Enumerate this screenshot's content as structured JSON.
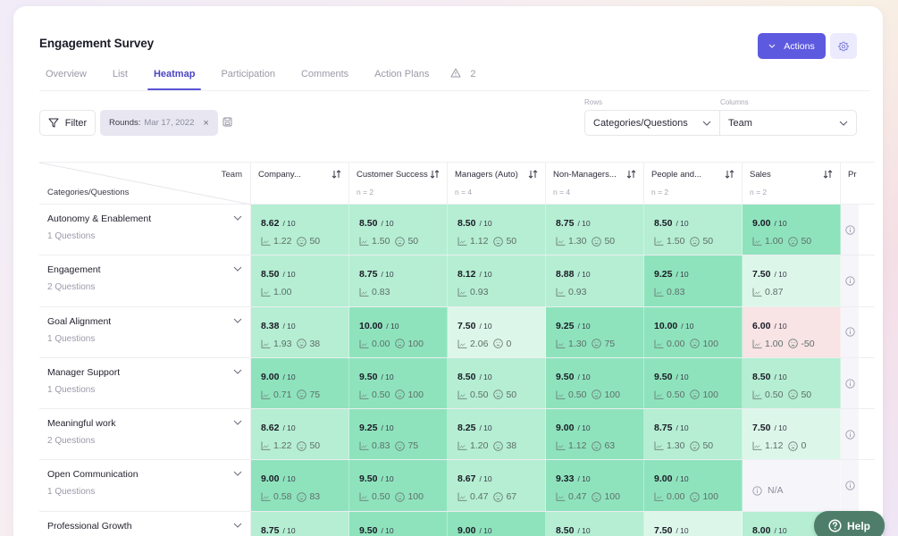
{
  "header": {
    "title": "Engagement Survey",
    "actions_label": "Actions",
    "settings_icon": "gear-icon"
  },
  "tabs": [
    {
      "label": "Overview",
      "active": false
    },
    {
      "label": "List",
      "active": false
    },
    {
      "label": "Heatmap",
      "active": true
    },
    {
      "label": "Participation",
      "active": false
    },
    {
      "label": "Comments",
      "active": false
    },
    {
      "label": "Action Plans",
      "active": false
    }
  ],
  "alerts": {
    "icon": "warning-icon",
    "count": "2"
  },
  "filter": {
    "button_label": "Filter",
    "chip_label": "Rounds:",
    "chip_value": "Mar 17, 2022",
    "chip_close": "×"
  },
  "selectors": {
    "rows_label": "Rows",
    "rows_value": "Categories/Questions",
    "columns_label": "Columns",
    "columns_value": "Team"
  },
  "table": {
    "corner_top": "Team",
    "corner_bottom": "Categories/Questions",
    "columns": [
      {
        "name": "Company...",
        "n": ""
      },
      {
        "name": "Customer Success",
        "n": "n = 2"
      },
      {
        "name": "Managers (Auto)",
        "n": "n = 4"
      },
      {
        "name": "Non-Managers...",
        "n": "n = 4"
      },
      {
        "name": "People and...",
        "n": "n = 2"
      },
      {
        "name": "Sales",
        "n": "n = 2"
      },
      {
        "name": "Pr",
        "n": ""
      }
    ],
    "score_max": "/ 10",
    "rows": [
      {
        "title": "Autonomy & Enablement",
        "sub": "1 Questions",
        "cells": [
          {
            "score": "8.62",
            "sd": "1.22",
            "enps": "50",
            "tone": "mid",
            "face": "happy"
          },
          {
            "score": "8.50",
            "sd": "1.50",
            "enps": "50",
            "tone": "mid",
            "face": "happy"
          },
          {
            "score": "8.50",
            "sd": "1.12",
            "enps": "50",
            "tone": "mid",
            "face": "happy"
          },
          {
            "score": "8.75",
            "sd": "1.30",
            "enps": "50",
            "tone": "mid",
            "face": "happy"
          },
          {
            "score": "8.50",
            "sd": "1.50",
            "enps": "50",
            "tone": "mid",
            "face": "happy"
          },
          {
            "score": "9.00",
            "sd": "1.00",
            "enps": "50",
            "tone": "dark",
            "face": "happy"
          }
        ]
      },
      {
        "title": "Engagement",
        "sub": "2 Questions",
        "cells": [
          {
            "score": "8.50",
            "sd": "1.00",
            "enps": null,
            "tone": "mid"
          },
          {
            "score": "8.75",
            "sd": "0.83",
            "enps": null,
            "tone": "mid"
          },
          {
            "score": "8.12",
            "sd": "0.93",
            "enps": null,
            "tone": "mid"
          },
          {
            "score": "8.88",
            "sd": "0.93",
            "enps": null,
            "tone": "mid"
          },
          {
            "score": "9.25",
            "sd": "0.83",
            "enps": null,
            "tone": "dark"
          },
          {
            "score": "7.50",
            "sd": "0.87",
            "enps": null,
            "tone": "light"
          }
        ]
      },
      {
        "title": "Goal Alignment",
        "sub": "1 Questions",
        "cells": [
          {
            "score": "8.38",
            "sd": "1.93",
            "enps": "38",
            "tone": "mid",
            "face": "happy"
          },
          {
            "score": "10.00",
            "sd": "0.00",
            "enps": "100",
            "tone": "dark",
            "face": "happy"
          },
          {
            "score": "7.50",
            "sd": "2.06",
            "enps": "0",
            "tone": "light",
            "face": "neutral"
          },
          {
            "score": "9.25",
            "sd": "1.30",
            "enps": "75",
            "tone": "dark",
            "face": "happy"
          },
          {
            "score": "10.00",
            "sd": "0.00",
            "enps": "100",
            "tone": "dark",
            "face": "happy"
          },
          {
            "score": "6.00",
            "sd": "1.00",
            "enps": "-50",
            "tone": "neg",
            "face": "sad"
          }
        ]
      },
      {
        "title": "Manager Support",
        "sub": "1 Questions",
        "cells": [
          {
            "score": "9.00",
            "sd": "0.71",
            "enps": "75",
            "tone": "dark",
            "face": "happy"
          },
          {
            "score": "9.50",
            "sd": "0.50",
            "enps": "100",
            "tone": "dark",
            "face": "happy"
          },
          {
            "score": "8.50",
            "sd": "0.50",
            "enps": "50",
            "tone": "mid",
            "face": "happy"
          },
          {
            "score": "9.50",
            "sd": "0.50",
            "enps": "100",
            "tone": "dark",
            "face": "happy"
          },
          {
            "score": "9.50",
            "sd": "0.50",
            "enps": "100",
            "tone": "dark",
            "face": "happy"
          },
          {
            "score": "8.50",
            "sd": "0.50",
            "enps": "50",
            "tone": "mid",
            "face": "happy"
          }
        ]
      },
      {
        "title": "Meaningful work",
        "sub": "2 Questions",
        "cells": [
          {
            "score": "8.62",
            "sd": "1.22",
            "enps": "50",
            "tone": "mid",
            "face": "happy"
          },
          {
            "score": "9.25",
            "sd": "0.83",
            "enps": "75",
            "tone": "dark",
            "face": "happy"
          },
          {
            "score": "8.25",
            "sd": "1.20",
            "enps": "38",
            "tone": "mid",
            "face": "happy"
          },
          {
            "score": "9.00",
            "sd": "1.12",
            "enps": "63",
            "tone": "dark",
            "face": "happy"
          },
          {
            "score": "8.75",
            "sd": "1.30",
            "enps": "50",
            "tone": "mid",
            "face": "happy"
          },
          {
            "score": "7.50",
            "sd": "1.12",
            "enps": "0",
            "tone": "light",
            "face": "neutral"
          }
        ]
      },
      {
        "title": "Open Communication",
        "sub": "1 Questions",
        "cells": [
          {
            "score": "9.00",
            "sd": "0.58",
            "enps": "83",
            "tone": "dark",
            "face": "happy"
          },
          {
            "score": "9.50",
            "sd": "0.50",
            "enps": "100",
            "tone": "dark",
            "face": "happy"
          },
          {
            "score": "8.67",
            "sd": "0.47",
            "enps": "67",
            "tone": "mid",
            "face": "happy"
          },
          {
            "score": "9.33",
            "sd": "0.47",
            "enps": "100",
            "tone": "dark",
            "face": "happy"
          },
          {
            "score": "9.00",
            "sd": "0.00",
            "enps": "100",
            "tone": "dark",
            "face": "happy"
          },
          {
            "na": "N/A",
            "tone": "na"
          }
        ]
      },
      {
        "title": "Professional Growth",
        "sub": "",
        "cells": [
          {
            "score": "8.75",
            "sd": "",
            "enps": null,
            "tone": "mid"
          },
          {
            "score": "9.50",
            "sd": "",
            "enps": null,
            "tone": "dark"
          },
          {
            "score": "9.00",
            "sd": "",
            "enps": null,
            "tone": "dark"
          },
          {
            "score": "8.50",
            "sd": "",
            "enps": null,
            "tone": "mid"
          },
          {
            "score": "7.50",
            "sd": "",
            "enps": null,
            "tone": "light"
          },
          {
            "score": "8.00",
            "sd": "",
            "enps": null,
            "tone": "mid"
          }
        ]
      }
    ]
  },
  "help": {
    "label": "Help"
  },
  "colors": {
    "accent": "#5e5ae0",
    "tab_active": "#4b45c2",
    "cell_dark": "#8ee3bd",
    "cell_mid": "#b5eed3",
    "cell_light": "#dcf7e9",
    "cell_negative": "#f8e3e5",
    "cell_na": "#f6f5fa",
    "help_button": "#4e7e6a"
  }
}
